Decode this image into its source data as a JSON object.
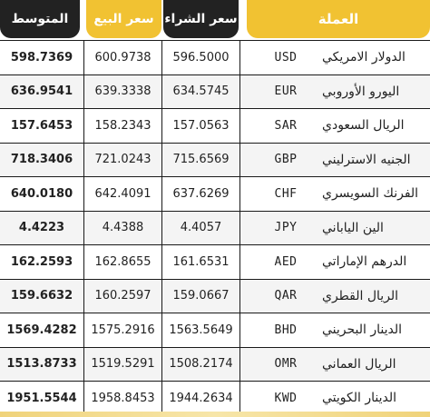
{
  "headers": {
    "currency": "العملة",
    "buy": "سعر الشراء",
    "sell": "سعر البيع",
    "average": "المتوسط"
  },
  "rows": [
    {
      "name": "الدولار الامريكي",
      "code": "USD",
      "buy": "596.5000",
      "sell": "600.9738",
      "avg": "598.7369"
    },
    {
      "name": "اليورو الأوروبي",
      "code": "EUR",
      "buy": "634.5745",
      "sell": "639.3338",
      "avg": "636.9541"
    },
    {
      "name": "الريال السعودي",
      "code": "SAR",
      "buy": "157.0563",
      "sell": "158.2343",
      "avg": "157.6453"
    },
    {
      "name": "الجنيه الاسترليني",
      "code": "GBP",
      "buy": "715.6569",
      "sell": "721.0243",
      "avg": "718.3406"
    },
    {
      "name": "الفرنك السويسري",
      "code": "CHF",
      "buy": "637.6269",
      "sell": "642.4091",
      "avg": "640.0180"
    },
    {
      "name": "الين الياباني",
      "code": "JPY",
      "buy": "4.4057",
      "sell": "4.4388",
      "avg": "4.4223"
    },
    {
      "name": "الدرهم الإماراتي",
      "code": "AED",
      "buy": "161.6531",
      "sell": "162.8655",
      "avg": "162.2593"
    },
    {
      "name": "الريال القطري",
      "code": "QAR",
      "buy": "159.0667",
      "sell": "160.2597",
      "avg": "159.6632"
    },
    {
      "name": "الدينار البحريني",
      "code": "BHD",
      "buy": "1563.5649",
      "sell": "1575.2916",
      "avg": "1569.4282"
    },
    {
      "name": "الريال العماني",
      "code": "OMR",
      "buy": "1508.2174",
      "sell": "1519.5291",
      "avg": "1513.8733"
    },
    {
      "name": "الدينار الكويتي",
      "code": "KWD",
      "buy": "1944.2634",
      "sell": "1958.8453",
      "avg": "1951.5544"
    }
  ],
  "colors": {
    "accent": "#f1c232",
    "dark": "#222222"
  }
}
